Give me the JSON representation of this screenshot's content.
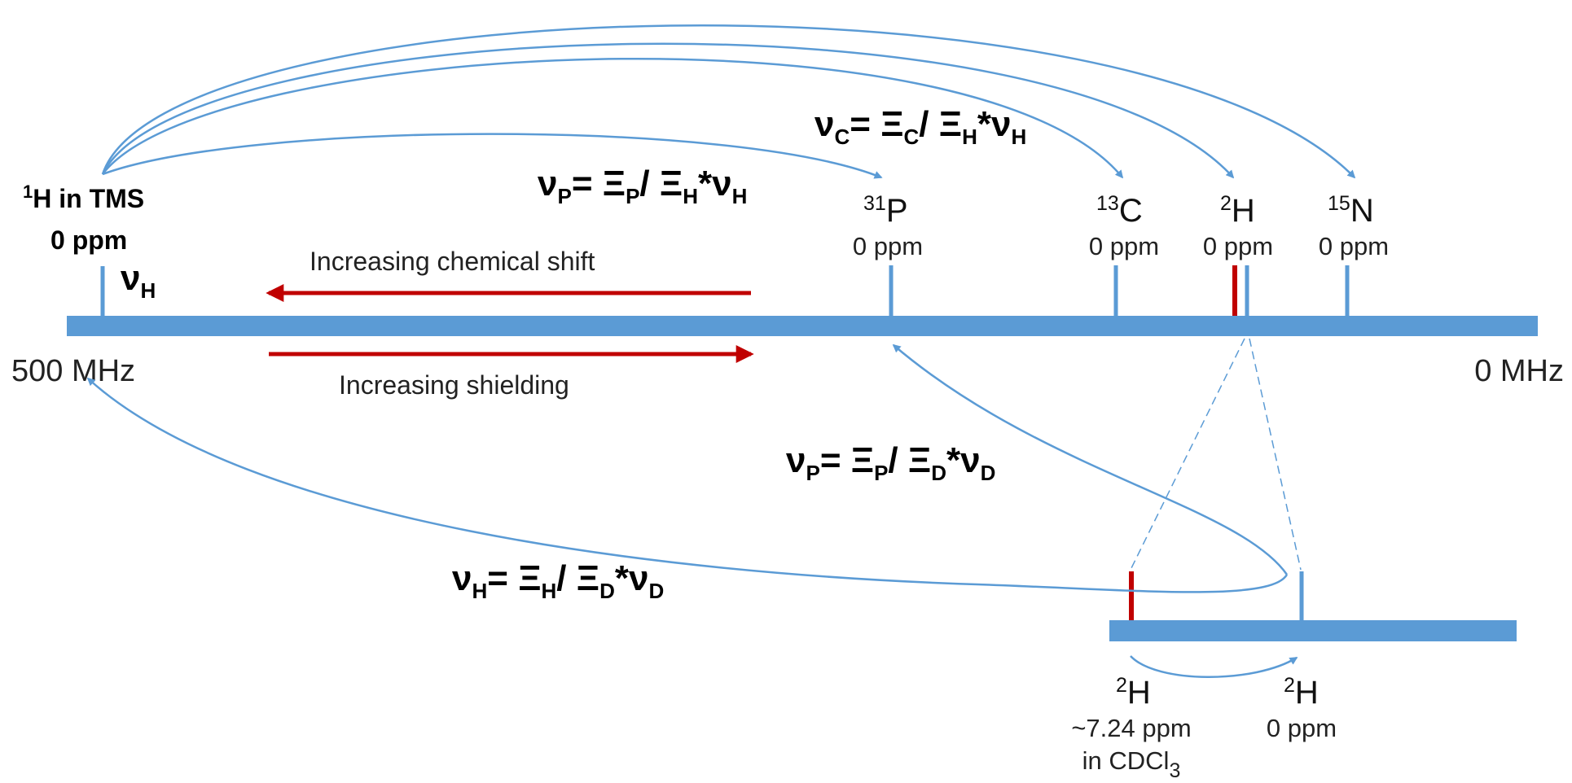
{
  "colors": {
    "bar": "#5b9bd5",
    "arrow": "#c00000",
    "curve": "#5b9bd5",
    "ref_marker": "#c00000"
  },
  "scale": {
    "left_label": "500 MHz",
    "right_label": "0 MHz"
  },
  "tms": {
    "sup": "1",
    "label": "H in TMS",
    "ppm": "0 ppm",
    "nu": "ν",
    "nu_sub": "H"
  },
  "nuclei": [
    {
      "id": "p",
      "sup": "31",
      "sym": "P",
      "ppm": "0 ppm"
    },
    {
      "id": "c",
      "sup": "13",
      "sym": "C",
      "ppm": "0 ppm"
    },
    {
      "id": "h2",
      "sup": "2",
      "sym": "H",
      "ppm": "0 ppm"
    },
    {
      "id": "n",
      "sup": "15",
      "sym": "N",
      "ppm": "0 ppm"
    }
  ],
  "directions": {
    "chemical_shift": "Increasing chemical shift",
    "shielding": "Increasing shielding"
  },
  "equations": {
    "nu_c": {
      "lhs": "ν",
      "lhs_sub": "C",
      "ratio_top": "Ξ",
      "ratio_top_sub": "C",
      "ratio_bot": "Ξ",
      "ratio_bot_sub": "H",
      "rhs": "ν",
      "rhs_sub": "H"
    },
    "nu_p_h": {
      "lhs": "ν",
      "lhs_sub": "P",
      "ratio_top": "Ξ",
      "ratio_top_sub": "P",
      "ratio_bot": "Ξ",
      "ratio_bot_sub": "H",
      "rhs": "ν",
      "rhs_sub": "H"
    },
    "nu_p_d": {
      "lhs": "ν",
      "lhs_sub": "P",
      "ratio_top": "Ξ",
      "ratio_top_sub": "P",
      "ratio_bot": "Ξ",
      "ratio_bot_sub": "D",
      "rhs": "ν",
      "rhs_sub": "D"
    },
    "nu_h_d": {
      "lhs": "ν",
      "lhs_sub": "H",
      "ratio_top": "Ξ",
      "ratio_top_sub": "H",
      "ratio_bot": "Ξ",
      "ratio_bot_sub": "D",
      "rhs": "ν",
      "rhs_sub": "D"
    }
  },
  "inset": {
    "solvent": {
      "sup": "2",
      "sym": "H",
      "ppm": "~7.24 ppm",
      "solvent_prefix": "in CDCl",
      "solvent_sub": "3"
    },
    "zero": {
      "sup": "2",
      "sym": "H",
      "ppm": "0 ppm"
    }
  }
}
